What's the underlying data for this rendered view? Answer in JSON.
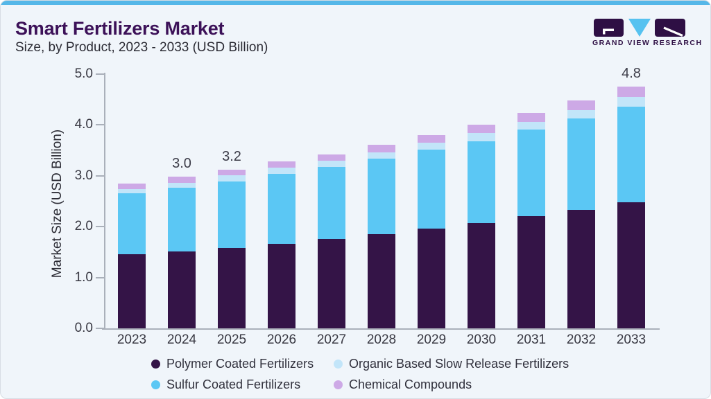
{
  "header": {
    "title": "Smart Fertilizers Market",
    "subtitle": "Size, by Product, 2023 - 2033 (USD Billion)"
  },
  "logo": {
    "brand": "GRAND VIEW RESEARCH"
  },
  "colors": {
    "accent_strip": "#55b7e8",
    "card_background": "#f0f5fa",
    "title": "#3c1158",
    "logo_purple": "#2e0f44",
    "logo_blue": "#56c2f0",
    "axis": "#aab0ba"
  },
  "chart_data": {
    "type": "bar",
    "stacked": true,
    "title": "Smart Fertilizers Market Size, by Product, 2023 - 2033 (USD Billion)",
    "ylabel": "Market Size (USD Billion)",
    "ylim": [
      0,
      5
    ],
    "yticks": [
      0,
      1,
      2,
      3,
      4,
      5
    ],
    "ytick_labels": [
      "0.0",
      "1.0",
      "2.0",
      "3.0",
      "4.0",
      "5.0"
    ],
    "grid": false,
    "legend_position": "bottom",
    "categories": [
      "2023",
      "2024",
      "2025",
      "2026",
      "2027",
      "2028",
      "2029",
      "2030",
      "2031",
      "2032",
      "2033"
    ],
    "series": [
      {
        "name": "Polymer Coated Fertilizers",
        "color": "#341447",
        "values": [
          1.45,
          1.51,
          1.58,
          1.66,
          1.75,
          1.85,
          1.96,
          2.07,
          2.2,
          2.33,
          2.48
        ]
      },
      {
        "name": "Sulfur Coated Fertilizers",
        "color": "#5bc7f4",
        "values": [
          1.2,
          1.25,
          1.31,
          1.37,
          1.42,
          1.48,
          1.55,
          1.61,
          1.7,
          1.79,
          1.88
        ]
      },
      {
        "name": "Organic Based Slow Release Fertilizers",
        "color": "#c2e5f9",
        "values": [
          0.09,
          0.1,
          0.11,
          0.12,
          0.12,
          0.13,
          0.14,
          0.15,
          0.16,
          0.17,
          0.19
        ]
      },
      {
        "name": "Chemical Compounds",
        "color": "#cda9e6",
        "values": [
          0.11,
          0.12,
          0.12,
          0.13,
          0.13,
          0.14,
          0.15,
          0.17,
          0.17,
          0.18,
          0.2
        ]
      }
    ],
    "bar_labels": {
      "2024": "3.0",
      "2025": "3.2",
      "2033": "4.8"
    }
  },
  "legend": {
    "items": [
      {
        "label": "Polymer Coated Fertilizers",
        "color": "#341447"
      },
      {
        "label": "Organic Based Slow Release Fertilizers",
        "color": "#c2e5f9"
      },
      {
        "label": "Sulfur Coated Fertilizers",
        "color": "#5bc7f4"
      },
      {
        "label": "Chemical Compounds",
        "color": "#cda9e6"
      }
    ]
  }
}
